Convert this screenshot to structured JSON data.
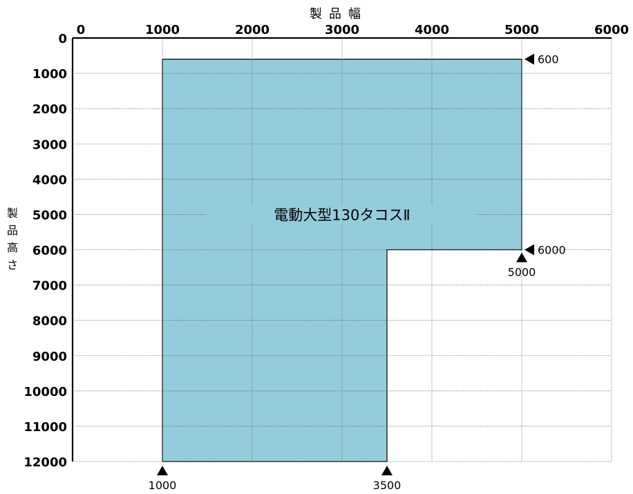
{
  "chart_data": {
    "type": "area",
    "title": "",
    "xlabel": "製品幅",
    "ylabel": "製品高さ",
    "x_axis_position": "top",
    "y_axis_inverted": true,
    "xlim": [
      0,
      6000
    ],
    "ylim": [
      0,
      12000
    ],
    "x_ticks": [
      0,
      1000,
      2000,
      3000,
      4000,
      5000,
      6000
    ],
    "y_ticks": [
      0,
      1000,
      2000,
      3000,
      4000,
      5000,
      6000,
      7000,
      8000,
      9000,
      10000,
      11000,
      12000
    ],
    "grid": true,
    "region": {
      "name": "電動大型130タコスⅡ",
      "color": "#95ccdb",
      "polygon": [
        [
          1000,
          600
        ],
        [
          5000,
          600
        ],
        [
          5000,
          6000
        ],
        [
          3500,
          6000
        ],
        [
          3500,
          12000
        ],
        [
          1000,
          12000
        ]
      ]
    },
    "annotations": [
      {
        "label": "600",
        "x": 5000,
        "y": 600,
        "marker": "left-triangle"
      },
      {
        "label": "6000",
        "x": 5000,
        "y": 6000,
        "marker": "left-triangle"
      },
      {
        "label": "5000",
        "x": 5000,
        "y": 6000,
        "marker": "up-triangle"
      },
      {
        "label": "1000",
        "x": 1000,
        "y": 12000,
        "marker": "up-triangle"
      },
      {
        "label": "3500",
        "x": 3500,
        "y": 12000,
        "marker": "up-triangle"
      }
    ]
  }
}
